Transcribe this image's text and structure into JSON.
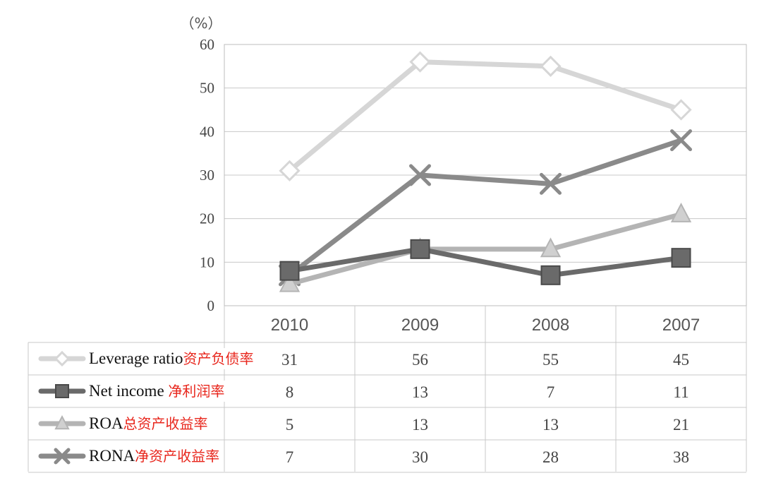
{
  "chart_data": {
    "type": "line",
    "unit_label": "（%）",
    "categories": [
      "2010",
      "2009",
      "2008",
      "2007"
    ],
    "ylim": [
      0,
      60
    ],
    "yticks": [
      0,
      10,
      20,
      30,
      40,
      50,
      60
    ],
    "grid": true,
    "legend_placement": "data-table-below",
    "series": [
      {
        "name": "Leverage ratio",
        "name_cn": "资产负债率",
        "values": [
          31,
          56,
          55,
          45
        ],
        "table": [
          "31",
          "56",
          "55",
          "45"
        ],
        "marker": "diamond",
        "color": "#d6d6d6"
      },
      {
        "name": "Net income ",
        "name_cn": "净利润率",
        "values": [
          8,
          13,
          7,
          11
        ],
        "table": [
          "8",
          "13",
          "7",
          "11"
        ],
        "marker": "square",
        "color": "#6a6a6a"
      },
      {
        "name": "ROA",
        "name_cn": "总资产收益率",
        "values": [
          5,
          13,
          13,
          21
        ],
        "table": [
          "5",
          "13",
          "13",
          "21"
        ],
        "marker": "triangle",
        "color": "#b4b4b4"
      },
      {
        "name": "RONA",
        "name_cn": "净资产收益率",
        "values": [
          7,
          30,
          28,
          38
        ],
        "table": [
          "7",
          "30",
          "28",
          "38"
        ],
        "marker": "x",
        "color": "#8a8a8a"
      }
    ]
  }
}
